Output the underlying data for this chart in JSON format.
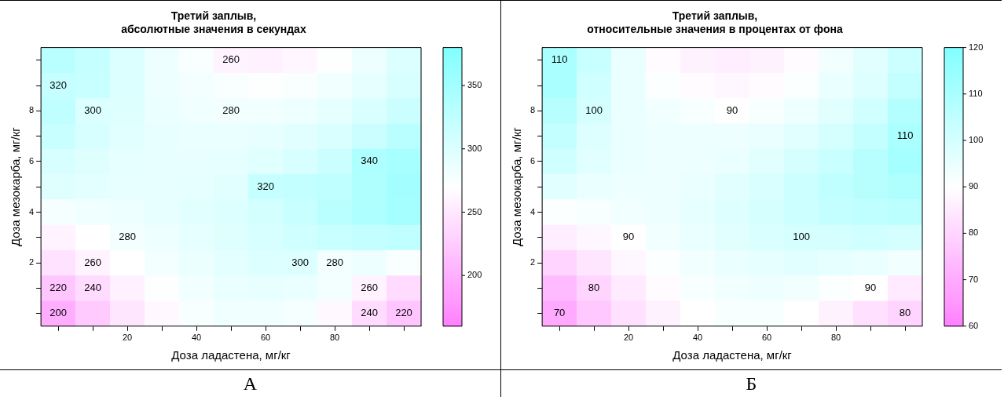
{
  "chart_data": [
    {
      "type": "heatmap",
      "title": "Третий заплыв,\nабсолютные значения в секундах",
      "xlabel": "Доза ладастена, мг/кг",
      "ylabel": "Доза мезокарба, мг/кг",
      "categories": [
        null,
        null,
        "20",
        null,
        "40",
        null,
        "60",
        null,
        "80",
        null,
        null
      ],
      "y_categories": [
        null,
        null,
        "8",
        null,
        "6",
        null,
        "4",
        null,
        "2",
        null,
        null
      ],
      "clim": [
        160,
        380
      ],
      "cticks": [
        200,
        250,
        300,
        350
      ],
      "cells": [
        [
          330,
          320,
          300,
          285,
          275,
          260,
          258,
          262,
          272,
          285,
          300
        ],
        [
          320,
          318,
          300,
          285,
          280,
          275,
          272,
          275,
          282,
          292,
          305
        ],
        [
          325,
          300,
          298,
          288,
          283,
          280,
          282,
          285,
          292,
          302,
          315
        ],
        [
          318,
          305,
          295,
          290,
          288,
          288,
          290,
          295,
          303,
          315,
          330
        ],
        [
          305,
          298,
          292,
          290,
          290,
          292,
          297,
          305,
          315,
          340,
          345
        ],
        [
          298,
          293,
          290,
          290,
          292,
          296,
          320,
          322,
          325,
          338,
          350
        ],
        [
          278,
          283,
          286,
          290,
          295,
          300,
          308,
          318,
          330,
          340,
          348
        ],
        [
          260,
          270,
          280,
          285,
          292,
          298,
          305,
          312,
          318,
          322,
          325
        ],
        [
          245,
          260,
          270,
          280,
          287,
          294,
          300,
          300,
          280,
          285,
          275
        ],
        [
          220,
          240,
          258,
          272,
          282,
          288,
          290,
          288,
          280,
          260,
          240
        ],
        [
          200,
          225,
          248,
          265,
          277,
          283,
          283,
          278,
          265,
          240,
          220
        ]
      ],
      "cell_labels": [
        [
          null,
          null,
          null,
          null,
          null,
          "260",
          null,
          null,
          null,
          null,
          null
        ],
        [
          "320",
          null,
          null,
          null,
          null,
          null,
          null,
          null,
          null,
          null,
          null
        ],
        [
          null,
          "300",
          null,
          null,
          null,
          "280",
          null,
          null,
          null,
          null,
          null
        ],
        [
          null,
          null,
          null,
          null,
          null,
          null,
          null,
          null,
          null,
          null,
          null
        ],
        [
          null,
          null,
          null,
          null,
          null,
          null,
          null,
          null,
          null,
          "340",
          null
        ],
        [
          null,
          null,
          null,
          null,
          null,
          null,
          "320",
          null,
          null,
          null,
          null
        ],
        [
          null,
          null,
          null,
          null,
          null,
          null,
          null,
          null,
          null,
          null,
          null
        ],
        [
          null,
          null,
          "280",
          null,
          null,
          null,
          null,
          null,
          null,
          null,
          null
        ],
        [
          null,
          "260",
          null,
          null,
          null,
          null,
          null,
          "300",
          "280",
          null,
          null
        ],
        [
          "220",
          "240",
          null,
          null,
          null,
          null,
          null,
          null,
          null,
          "260",
          null
        ],
        [
          "200",
          null,
          null,
          null,
          null,
          null,
          null,
          null,
          null,
          "240",
          "220"
        ]
      ],
      "annotations": [
        "А"
      ]
    },
    {
      "type": "heatmap",
      "title": "Третий заплыв,\nотносительные значения в процентах от фона",
      "xlabel": "Доза ладастена, мг/кг",
      "ylabel": "Доза мезокарба, мг/кг",
      "categories": [
        null,
        null,
        "20",
        null,
        "40",
        null,
        "60",
        null,
        "80",
        null,
        null
      ],
      "y_categories": [
        null,
        null,
        "8",
        null,
        "6",
        null,
        "4",
        null,
        "2",
        null,
        null
      ],
      "clim": [
        60,
        120
      ],
      "cticks": [
        60,
        70,
        80,
        90,
        100,
        110,
        120
      ],
      "cells": [
        [
          110,
          103,
          95,
          89,
          87,
          86,
          87,
          89,
          93,
          97,
          102
        ],
        [
          110,
          101,
          95,
          91,
          89,
          88,
          89,
          91,
          95,
          98,
          104
        ],
        [
          107,
          100,
          95,
          93,
          92,
          90,
          92,
          94,
          97,
          101,
          108
        ],
        [
          104,
          98,
          95,
          94,
          94,
          94,
          95,
          97,
          100,
          104,
          110
        ],
        [
          101,
          97,
          95,
          94,
          94,
          95,
          97,
          100,
          103,
          107,
          111
        ],
        [
          97,
          95,
          94,
          94,
          95,
          97,
          99,
          102,
          105,
          107,
          109
        ],
        [
          91,
          92,
          93,
          94,
          96,
          98,
          100,
          102,
          104,
          105,
          106
        ],
        [
          86,
          88,
          90,
          93,
          95,
          97,
          99,
          100,
          100,
          101,
          100
        ],
        [
          80,
          84,
          88,
          91,
          93,
          95,
          96,
          97,
          96,
          95,
          93
        ],
        [
          74,
          80,
          85,
          89,
          92,
          93,
          94,
          93,
          91,
          90,
          85
        ],
        [
          70,
          77,
          83,
          87,
          90,
          92,
          92,
          90,
          87,
          83,
          80
        ]
      ],
      "cell_labels": [
        [
          "110",
          null,
          null,
          null,
          null,
          null,
          null,
          null,
          null,
          null,
          null
        ],
        [
          null,
          null,
          null,
          null,
          null,
          null,
          null,
          null,
          null,
          null,
          null
        ],
        [
          null,
          "100",
          null,
          null,
          null,
          "90",
          null,
          null,
          null,
          null,
          null
        ],
        [
          null,
          null,
          null,
          null,
          null,
          null,
          null,
          null,
          null,
          null,
          "110"
        ],
        [
          null,
          null,
          null,
          null,
          null,
          null,
          null,
          null,
          null,
          null,
          null
        ],
        [
          null,
          null,
          null,
          null,
          null,
          null,
          null,
          null,
          null,
          null,
          null
        ],
        [
          null,
          null,
          null,
          null,
          null,
          null,
          null,
          null,
          null,
          null,
          null
        ],
        [
          null,
          null,
          "90",
          null,
          null,
          null,
          null,
          "100",
          null,
          null,
          null
        ],
        [
          null,
          null,
          null,
          null,
          null,
          null,
          null,
          null,
          null,
          null,
          null
        ],
        [
          null,
          "80",
          null,
          null,
          null,
          null,
          null,
          null,
          null,
          "90",
          null
        ],
        [
          "70",
          null,
          null,
          null,
          null,
          null,
          null,
          null,
          null,
          null,
          "80"
        ]
      ],
      "annotations": [
        "Б"
      ]
    }
  ]
}
